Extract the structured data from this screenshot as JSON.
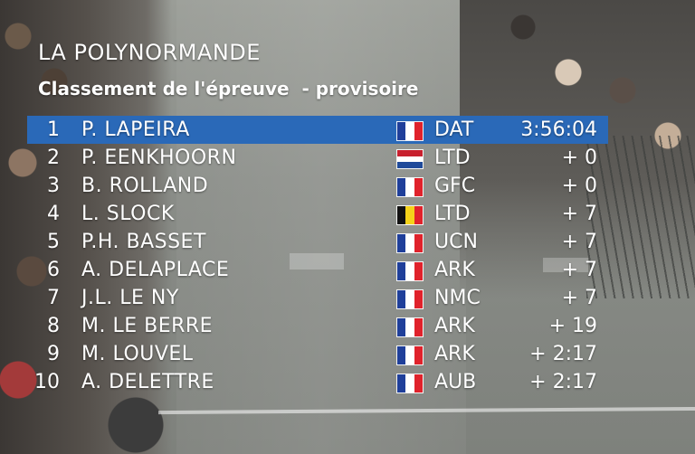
{
  "race": {
    "name": "LA POLYNORMANDE",
    "subtitle": "Classement de l'épreuve  - provisoire"
  },
  "colors": {
    "highlight": "#2a69b8",
    "flag_fr": [
      "#1f3f9a",
      "#ffffff",
      "#e0222b"
    ],
    "flag_be": [
      "#111111",
      "#f5d21a",
      "#e0222b"
    ],
    "flag_nl": [
      "#c8202e",
      "#ffffff",
      "#1f4a9a"
    ]
  },
  "standings": [
    {
      "pos": "1",
      "name": "P. LAPEIRA",
      "flag": "fr-flag-icon",
      "team": "DAT",
      "time": "3:56:04",
      "highlight": true
    },
    {
      "pos": "2",
      "name": "P. EENKHOORN",
      "flag": "nl-flag-icon",
      "team": "LTD",
      "time": "+ 0"
    },
    {
      "pos": "3",
      "name": "B. ROLLAND",
      "flag": "fr-flag-icon",
      "team": "GFC",
      "time": "+ 0"
    },
    {
      "pos": "4",
      "name": "L. SLOCK",
      "flag": "be-flag-icon",
      "team": "LTD",
      "time": "+ 7"
    },
    {
      "pos": "5",
      "name": "P.H. BASSET",
      "flag": "fr-flag-icon",
      "team": "UCN",
      "time": "+ 7"
    },
    {
      "pos": "6",
      "name": "A. DELAPLACE",
      "flag": "fr-flag-icon",
      "team": "ARK",
      "time": "+ 7"
    },
    {
      "pos": "7",
      "name": "J.L. LE NY",
      "flag": "fr-flag-icon",
      "team": "NMC",
      "time": "+ 7"
    },
    {
      "pos": "8",
      "name": "M. LE BERRE",
      "flag": "fr-flag-icon",
      "team": "ARK",
      "time": "+ 19"
    },
    {
      "pos": "9",
      "name": "M. LOUVEL",
      "flag": "fr-flag-icon",
      "team": "ARK",
      "time": "+ 2:17"
    },
    {
      "pos": "10",
      "name": "A. DELETTRE",
      "flag": "fr-flag-icon",
      "team": "AUB",
      "time": "+ 2:17"
    }
  ]
}
